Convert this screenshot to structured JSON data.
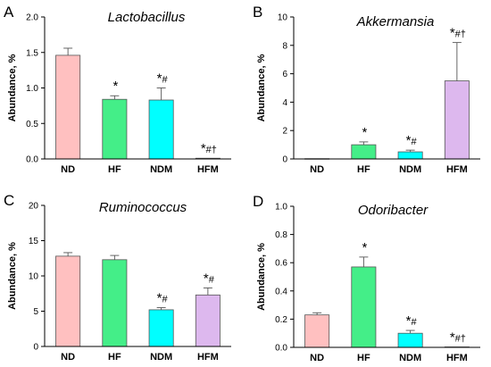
{
  "chart_data": [
    {
      "panel": "A",
      "type": "bar",
      "title": "Lactobacillus",
      "ylabel": "Abundance, %",
      "ylim": [
        0,
        2.0
      ],
      "yticks": [
        "0.0",
        "0.5",
        "1.0",
        "1.5",
        "2.0"
      ],
      "ytick_values": [
        0,
        0.5,
        1.0,
        1.5,
        2.0
      ],
      "categories": [
        "ND",
        "HF",
        "NDM",
        "HFM"
      ],
      "values": [
        1.46,
        0.84,
        0.83,
        0.01
      ],
      "errors": [
        0.1,
        0.05,
        0.17,
        0.0
      ],
      "annotations": [
        "",
        "*",
        "*#",
        "*#†"
      ],
      "colors": [
        "#ffc0c0",
        "#44ee88",
        "#00ffff",
        "#ddb8ee"
      ]
    },
    {
      "panel": "B",
      "type": "bar",
      "title": "Akkermansia",
      "ylabel": "Abundance, %",
      "ylim": [
        0,
        10
      ],
      "yticks": [
        "0",
        "2",
        "4",
        "6",
        "8",
        "10"
      ],
      "ytick_values": [
        0,
        2,
        4,
        6,
        8,
        10
      ],
      "categories": [
        "ND",
        "HF",
        "NDM",
        "HFM"
      ],
      "values": [
        0.02,
        1.0,
        0.5,
        5.5
      ],
      "errors": [
        0.0,
        0.2,
        0.12,
        2.7
      ],
      "annotations": [
        "",
        "*",
        "*#",
        "*#†"
      ],
      "colors": [
        "#ffc0c0",
        "#44ee88",
        "#00ffff",
        "#ddb8ee"
      ]
    },
    {
      "panel": "C",
      "type": "bar",
      "title": "Ruminococcus",
      "ylabel": "Abundance, %",
      "ylim": [
        0,
        20
      ],
      "yticks": [
        "0",
        "5",
        "10",
        "15",
        "20"
      ],
      "ytick_values": [
        0,
        5,
        10,
        15,
        20
      ],
      "categories": [
        "ND",
        "HF",
        "NDM",
        "HFM"
      ],
      "values": [
        12.8,
        12.3,
        5.2,
        7.3
      ],
      "errors": [
        0.5,
        0.6,
        0.3,
        1.0
      ],
      "annotations": [
        "",
        "",
        "*#",
        "*#"
      ],
      "colors": [
        "#ffc0c0",
        "#44ee88",
        "#00ffff",
        "#ddb8ee"
      ]
    },
    {
      "panel": "D",
      "type": "bar",
      "title": "Odoribacter",
      "ylabel": "Abundance, %",
      "ylim": [
        0,
        1.0
      ],
      "yticks": [
        "0.0",
        "0.2",
        "0.4",
        "0.6",
        "0.8",
        "1.0"
      ],
      "ytick_values": [
        0,
        0.2,
        0.4,
        0.6,
        0.8,
        1.0
      ],
      "categories": [
        "ND",
        "HF",
        "NDM",
        "HFM"
      ],
      "values": [
        0.23,
        0.57,
        0.1,
        0.003
      ],
      "errors": [
        0.015,
        0.07,
        0.02,
        0.0
      ],
      "annotations": [
        "",
        "*",
        "*#",
        "*#†"
      ],
      "colors": [
        "#ffc0c0",
        "#44ee88",
        "#00ffff",
        "#ddb8ee"
      ]
    }
  ]
}
